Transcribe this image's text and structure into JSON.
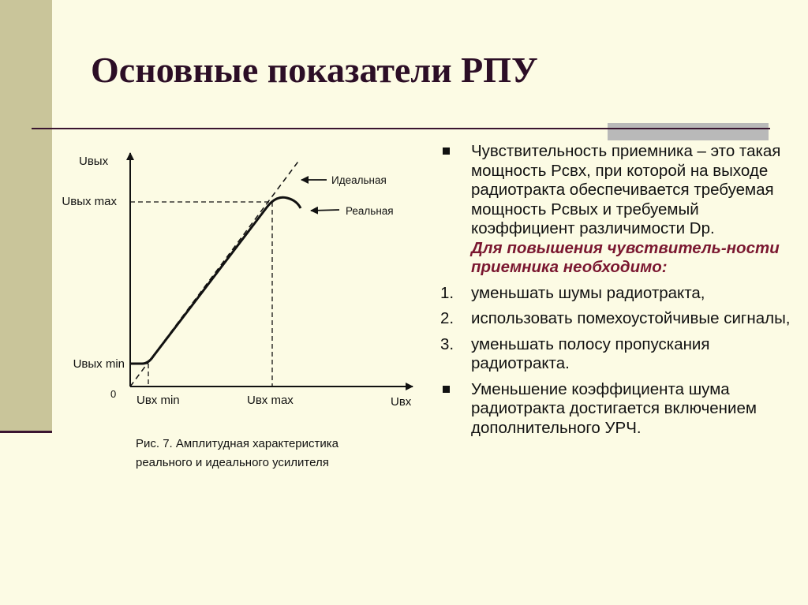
{
  "slide": {
    "title": "Основные показатели РПУ"
  },
  "figure": {
    "caption_line1": "Рис. 7. Амплитудная характеристика",
    "caption_line2": "реального и идеального усилителя"
  },
  "chart_data": {
    "type": "line",
    "xlabel": "Uвх",
    "ylabel": "Uвых",
    "origin_label": "0",
    "x_ticks": [
      "Uвх min",
      "Uвх max"
    ],
    "y_ticks": [
      "Uвых min",
      "Uвых max"
    ],
    "annotations": [
      "Идеальная",
      "Реальная"
    ],
    "series": [
      {
        "name": "Идеальная",
        "style": "dashed"
      },
      {
        "name": "Реальная",
        "style": "solid"
      }
    ]
  },
  "content": {
    "para1_text": "Чувствительность приемника – это такая мощность Рсвх, при которой на выходе радиотракта обеспечивается требуемая мощность  Рсвых и требуемый коэффициент различимости Dр.",
    "para1_emphasis": "Для повышения чувствитель-ности приемника необходимо:",
    "steps": [
      {
        "num": "1.",
        "text": "уменьшать шумы радиотракта,"
      },
      {
        "num": "2.",
        "text": "использовать помехоустойчивые сигналы,"
      },
      {
        "num": "3.",
        "text": "уменьшать полосу пропускания радиотракта."
      }
    ],
    "para2_text": "Уменьшение коэффициента шума радиотракта достигается включением дополнительного УРЧ."
  }
}
